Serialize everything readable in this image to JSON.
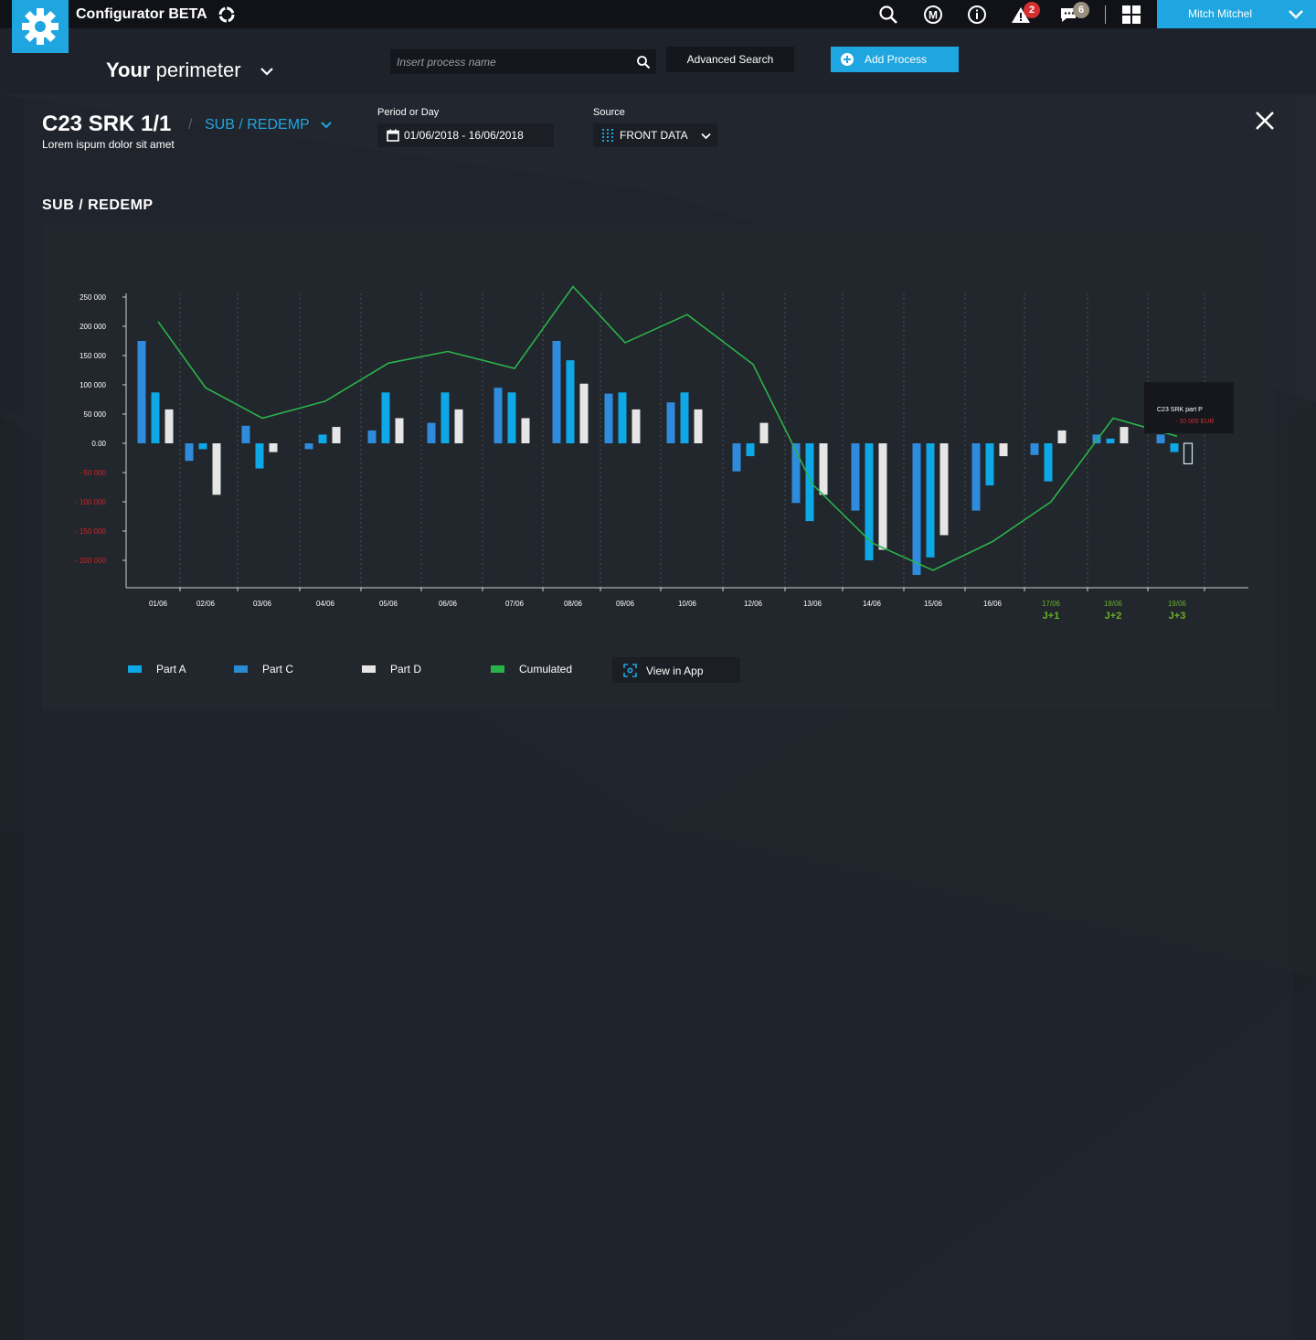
{
  "app": {
    "title": "Configurator BETA"
  },
  "topbar": {
    "icons": [
      "search-icon",
      "m-icon",
      "info-icon",
      "alert-icon",
      "chat-icon",
      "grid-icon"
    ],
    "alerts_count": "2",
    "messages_count": "6",
    "user_name": "Mitch Mitchel"
  },
  "perimeter": {
    "prefix": "Your",
    "label": "perimeter"
  },
  "search": {
    "placeholder": "Insert process name"
  },
  "toolbar": {
    "advanced_search": "Advanced Search",
    "add_process": "Add Process"
  },
  "record": {
    "title": "C23 SRK 1/1",
    "separator": "/",
    "category": "SUB / REDEMP",
    "subtitle": "Lorem ispum dolor sit amet"
  },
  "filters": {
    "period_label": "Period or Day",
    "period_value": "01/06/2018 - 16/06/2018",
    "source_label": "Source",
    "source_value": "FRONT DATA"
  },
  "section_title": "SUB / REDEMP",
  "colors": {
    "accent": "#1fa6e0",
    "part_a": "#2f8cdc",
    "part_c": "#0fa8e6",
    "part_d": "#e6e6e6",
    "cumulated": "#2ab34a",
    "negative_tick": "#c62828",
    "forecast": "#6ab023"
  },
  "legend": {
    "part_a": "Part  A",
    "part_c": "Part C",
    "part_d": "Part D",
    "cumulated": "Cumulated",
    "view_in_app": "View in App"
  },
  "tooltip": {
    "title": "C23 SRK part  P",
    "value": "- 10 000 EUR"
  },
  "chart_data": {
    "type": "bar",
    "ylim": [
      -250000,
      255000
    ],
    "y_ticks": [
      {
        "value": 250000,
        "label": "250 000"
      },
      {
        "value": 200000,
        "label": "200 000"
      },
      {
        "value": 150000,
        "label": "150 000"
      },
      {
        "value": 100000,
        "label": "100 000"
      },
      {
        "value": 50000,
        "label": "50 000"
      },
      {
        "value": 0,
        "label": "0.00"
      },
      {
        "value": -50000,
        "label": "- 50 000"
      },
      {
        "value": -100000,
        "label": "- 100  000"
      },
      {
        "value": -150000,
        "label": "- 150 000"
      },
      {
        "value": -200000,
        "label": "- 200 000"
      }
    ],
    "categories": [
      "01/06",
      "02/06",
      "03/06",
      "04/06",
      "05/06",
      "06/06",
      "07/06",
      "08/06",
      "09/06",
      "10/06",
      "12/06",
      "13/06",
      "14/06",
      "15/06",
      "16/06",
      "17/06",
      "18/06",
      "19/06"
    ],
    "forecast_labels": [
      "",
      "",
      "",
      "",
      "",
      "",
      "",
      "",
      "",
      "",
      "",
      "",
      "",
      "",
      "",
      "J+1",
      "J+2",
      "J+3"
    ],
    "series": [
      {
        "name": "Part  A",
        "values": [
          175000,
          -30000,
          30000,
          -10000,
          22000,
          35000,
          95000,
          175000,
          85000,
          70000,
          -48000,
          -102000,
          -115000,
          -225000,
          -115000,
          -20000,
          15000,
          15000
        ]
      },
      {
        "name": "Part C",
        "values": [
          87000,
          -10000,
          -43000,
          15000,
          87000,
          87000,
          87000,
          142000,
          87000,
          87000,
          -22000,
          -133000,
          -200000,
          -195000,
          -72000,
          -65000,
          8000,
          -15000
        ]
      },
      {
        "name": "Part D",
        "values": [
          58000,
          -88000,
          -15000,
          28000,
          43000,
          58000,
          43000,
          102000,
          58000,
          58000,
          35000,
          -88000,
          -182000,
          -157000,
          -22000,
          22000,
          28000,
          -35000
        ]
      }
    ],
    "cumulated": {
      "name": "Cumulated",
      "values": [
        208000,
        95000,
        43000,
        72000,
        137000,
        157000,
        128000,
        268000,
        172000,
        220000,
        135000,
        -70000,
        -170000,
        -217000,
        -168000,
        -100000,
        43000,
        12000
      ]
    }
  }
}
